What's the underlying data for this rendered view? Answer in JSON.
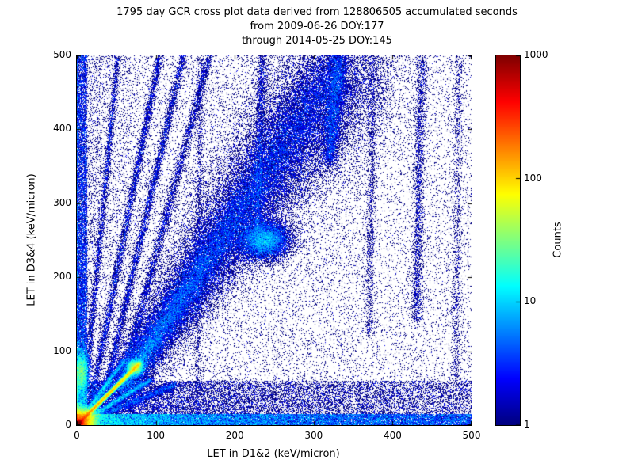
{
  "chart_data": {
    "type": "heatmap",
    "title_lines": [
      "1795 day GCR cross plot data derived from 128806505 accumulated seconds",
      "from 2009-06-26 DOY:177",
      "through 2014-05-25 DOY:145"
    ],
    "xlabel": "LET in D1&2 (keV/micron)",
    "ylabel": "LET in D3&4 (keV/micron)",
    "xlim": [
      0,
      500
    ],
    "ylim": [
      0,
      500
    ],
    "xticks": [
      0,
      100,
      200,
      300,
      400,
      500
    ],
    "yticks": [
      0,
      100,
      200,
      300,
      400,
      500
    ],
    "grid": false,
    "colorbar": {
      "label": "Counts",
      "scale": "log",
      "range": [
        1,
        1000
      ],
      "ticks": [
        "1",
        "10",
        "100",
        "1000"
      ],
      "tick_values": [
        1,
        10,
        100,
        1000
      ],
      "colormap": "jet",
      "low_color": "#00008f",
      "high_color": "#7f0000"
    },
    "seed": 42,
    "features": [
      {
        "type": "uniform",
        "n": 14000,
        "x": [
          0,
          500
        ],
        "y": [
          0,
          500
        ],
        "w": 1
      },
      {
        "type": "uniform",
        "n": 16000,
        "x": [
          0,
          500
        ],
        "y": [
          0,
          500
        ],
        "w": 1,
        "xpow": 2.2
      },
      {
        "type": "band",
        "n": 20000,
        "x": [
          0,
          500
        ],
        "y": [
          0,
          60
        ],
        "w": 1,
        "xpow": 1.6
      },
      {
        "type": "band",
        "n": 26000,
        "x": [
          0,
          500
        ],
        "y": [
          0,
          15
        ],
        "w": 1.7,
        "xpow": 1.9
      },
      {
        "type": "band",
        "n": 12000,
        "x": [
          0,
          13
        ],
        "y": [
          0,
          500
        ],
        "w": 1.4,
        "ypow": 1.8
      },
      {
        "type": "gauss",
        "n": 26000,
        "cx": 4,
        "cy": 4,
        "sx": 9,
        "sy": 9,
        "w": 3
      },
      {
        "type": "gauss",
        "n": 9000,
        "cx": 3,
        "cy": 3,
        "sx": 2.5,
        "sy": 2.5,
        "w": 3
      },
      {
        "type": "line",
        "n": 20000,
        "p1": [
          0,
          0
        ],
        "p2": [
          80,
          84
        ],
        "sigma": 1.4,
        "w1": 3,
        "w2": 1.2
      },
      {
        "type": "gauss",
        "n": 5200,
        "cx": 74,
        "cy": 78,
        "sx": 5,
        "sy": 5,
        "w": 1.3
      },
      {
        "type": "line",
        "n": 4000,
        "p1": [
          0,
          0
        ],
        "p2": [
          95,
          62
        ],
        "sigma": 2,
        "w1": 1.6,
        "w2": 0.8
      },
      {
        "type": "line",
        "n": 4000,
        "p1": [
          0,
          0
        ],
        "p2": [
          60,
          88
        ],
        "sigma": 2,
        "w1": 1.6,
        "w2": 0.8
      },
      {
        "type": "line",
        "n": 3000,
        "p1": [
          0,
          0
        ],
        "p2": [
          125,
          55
        ],
        "sigma": 2.6,
        "w": 0.9
      },
      {
        "type": "line",
        "n": 4500,
        "p1": [
          20,
          40
        ],
        "p2": [
          105,
          500
        ],
        "sigma": 2.5,
        "w": 1
      },
      {
        "type": "line",
        "n": 4500,
        "p1": [
          35,
          40
        ],
        "p2": [
          135,
          500
        ],
        "sigma": 2.6,
        "w": 1
      },
      {
        "type": "line",
        "n": 4000,
        "p1": [
          55,
          50
        ],
        "p2": [
          168,
          500
        ],
        "sigma": 3,
        "w": 1
      },
      {
        "type": "line",
        "n": 3000,
        "p1": [
          12,
          60
        ],
        "p2": [
          52,
          500
        ],
        "sigma": 2,
        "w": 1
      },
      {
        "type": "line",
        "n": 55000,
        "p1": [
          55,
          50
        ],
        "p2": [
          345,
          495
        ],
        "sigma1": 10,
        "sigma2": 42,
        "w": 1
      },
      {
        "type": "line",
        "n": 18000,
        "p1": [
          60,
          55
        ],
        "p2": [
          330,
          492
        ],
        "sigma1": 4,
        "sigma2": 18,
        "w": 1
      },
      {
        "type": "gauss",
        "n": 10000,
        "cx": 238,
        "cy": 250,
        "sx": 16,
        "sy": 13,
        "w": 1
      },
      {
        "type": "line",
        "n": 5000,
        "p1": [
          320,
          355
        ],
        "p2": [
          331,
          500
        ],
        "sigma": 6,
        "w": 1
      },
      {
        "type": "line",
        "n": 2500,
        "p1": [
          430,
          140
        ],
        "p2": [
          437,
          500
        ],
        "sigma": 3.5,
        "w": 1
      },
      {
        "type": "line",
        "n": 2200,
        "p1": [
          228,
          245
        ],
        "p2": [
          235,
          500
        ],
        "sigma": 3,
        "w": 1
      },
      {
        "type": "line",
        "n": 1500,
        "p1": [
          370,
          120
        ],
        "p2": [
          376,
          500
        ],
        "sigma": 3,
        "w": 0.8
      },
      {
        "type": "line",
        "n": 1300,
        "p1": [
          480,
          60
        ],
        "p2": [
          484,
          500
        ],
        "sigma": 3,
        "w": 0.8
      },
      {
        "type": "line",
        "n": 1400,
        "p1": [
          152,
          0
        ],
        "p2": [
          157,
          500
        ],
        "sigma": 2.5,
        "w": 0.8
      },
      {
        "type": "gauss",
        "n": 5200,
        "cx": 5,
        "cy": 72,
        "sx": 5,
        "sy": 14,
        "w": 2
      }
    ]
  }
}
